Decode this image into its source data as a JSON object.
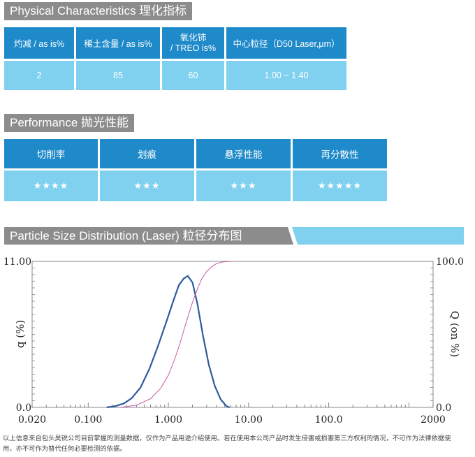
{
  "physical": {
    "title": "Physical Characteristics  理化指标",
    "headers": [
      "灼减 / as is%",
      "稀土含量 / as is%",
      "氧化铈\n/ TREO is%",
      "中心粒径（D50 Laser,μm）"
    ],
    "values": [
      "2",
      "85",
      "60",
      "1.00 ~ 1.40"
    ]
  },
  "performance": {
    "title": "Performance 抛光性能",
    "headers": [
      "切削率",
      "划痕",
      "悬浮性能",
      "再分散性"
    ],
    "stars": [
      "★★★★",
      "★★★",
      "★★★",
      "★★★★★"
    ]
  },
  "psd": {
    "title": "Particle Size Distribution (Laser) 粒径分布图"
  },
  "chart_data": {
    "type": "line",
    "x_scale": "log",
    "xlim": [
      0.02,
      2000
    ],
    "x_ticks": [
      "0.020",
      "0.100",
      "1.000",
      "10.00",
      "100.0",
      "2000"
    ],
    "x_tick_values": [
      0.02,
      0.1,
      1,
      10,
      100,
      2000
    ],
    "ylabel_left": "q (%)",
    "ylim_left": [
      0,
      11
    ],
    "y_ticks_left": [
      "0.0",
      "11.00"
    ],
    "ylabel_right": "Q (on %)",
    "ylim_right": [
      0,
      100
    ],
    "y_ticks_right": [
      "0.0",
      "100.0"
    ],
    "series": [
      {
        "axis": "left",
        "color": "#2f5a9e",
        "x": [
          0.17,
          0.22,
          0.28,
          0.35,
          0.45,
          0.58,
          0.75,
          0.95,
          1.15,
          1.35,
          1.55,
          1.75,
          2.0,
          2.3,
          2.7,
          3.2,
          3.8,
          4.5,
          5.3,
          5.8
        ],
        "y": [
          0.0,
          0.1,
          0.3,
          0.7,
          1.5,
          2.9,
          4.7,
          6.5,
          8.0,
          9.2,
          9.7,
          9.9,
          9.4,
          7.8,
          5.4,
          3.2,
          1.6,
          0.6,
          0.1,
          0.0
        ]
      },
      {
        "axis": "right",
        "color": "#c45aa0",
        "x": [
          0.25,
          0.4,
          0.6,
          0.8,
          1.0,
          1.2,
          1.4,
          1.6,
          1.8,
          2.0,
          2.3,
          2.6,
          3.0,
          3.5,
          4.0,
          4.8,
          6.0
        ],
        "y": [
          0.0,
          1.5,
          6.0,
          13.0,
          22.0,
          33.0,
          44.0,
          55.0,
          64.0,
          72.0,
          81.0,
          88.0,
          93.0,
          96.5,
          98.5,
          99.6,
          100.0
        ]
      }
    ]
  },
  "footnote": "以上信息来自包头昊锐公司目前掌握的测量数据，仅作为产品用途介绍使用。若在使用本公司产品时发生侵害或损害第三方权利的情况，不可作为法律依据使用，亦不可作为替代任何必要检测的依据。"
}
